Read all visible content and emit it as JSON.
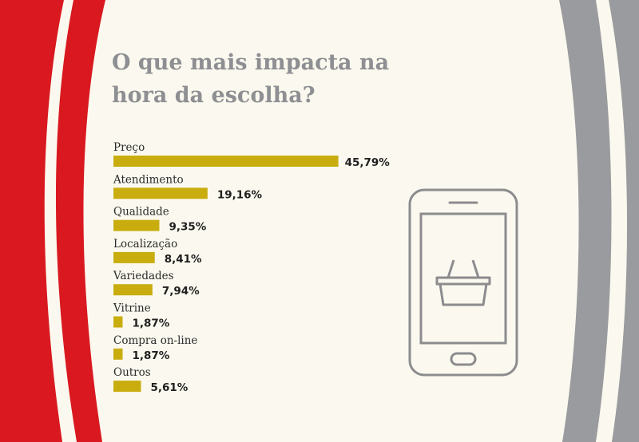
{
  "title_lines": [
    "O que mais impacta na",
    "hora da escolha?"
  ],
  "colors": {
    "background": "#fbf9ef",
    "bar": "#c9ad0f",
    "red": "#d9191f",
    "gray": "#9a9b9e",
    "title": "#8e8f92",
    "icon": "#8c8c8e"
  },
  "icons": [
    "smartphone-icon",
    "shopping-basket-icon"
  ],
  "chart_data": {
    "type": "bar",
    "orientation": "horizontal",
    "title": "O que mais impacta na hora da escolha?",
    "categories": [
      "Preço",
      "Atendimento",
      "Qualidade",
      "Localização",
      "Variedades",
      "Vitrine",
      "Compra on-line",
      "Outros"
    ],
    "values": [
      45.79,
      19.16,
      9.35,
      8.41,
      7.94,
      1.87,
      1.87,
      5.61
    ],
    "value_labels": [
      "45,79%",
      "19,16%",
      "9,35%",
      "8,41%",
      "7,94%",
      "1,87%",
      "1,87%",
      "5,61%"
    ],
    "unit": "%",
    "grid": false,
    "legend": "none"
  }
}
